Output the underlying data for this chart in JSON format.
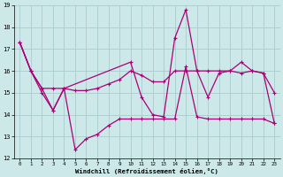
{
  "xlabel": "Windchill (Refroidissement éolien,°C)",
  "background_color": "#cce8e8",
  "grid_color": "#aacccc",
  "line_color": "#aa0077",
  "xlim": [
    -0.5,
    23.5
  ],
  "ylim": [
    12,
    19
  ],
  "yticks": [
    12,
    13,
    14,
    15,
    16,
    17,
    18,
    19
  ],
  "xticks": [
    0,
    1,
    2,
    3,
    4,
    5,
    6,
    7,
    8,
    9,
    10,
    11,
    12,
    13,
    14,
    15,
    16,
    17,
    18,
    19,
    20,
    21,
    22,
    23
  ],
  "series1_x": [
    0,
    1,
    2,
    3,
    4,
    5,
    6,
    7,
    8,
    9,
    10,
    11,
    12,
    13,
    14,
    15,
    16,
    17,
    18,
    19,
    20,
    21,
    22,
    23
  ],
  "series1_y": [
    17.3,
    16.0,
    15.0,
    14.2,
    15.2,
    12.4,
    12.9,
    13.1,
    13.5,
    13.8,
    13.8,
    13.8,
    13.8,
    13.8,
    13.8,
    16.2,
    13.9,
    13.8,
    13.8,
    13.8,
    13.8,
    13.8,
    13.8,
    13.6
  ],
  "series2_x": [
    0,
    1,
    2,
    3,
    4,
    5,
    6,
    7,
    8,
    9,
    10,
    11,
    12,
    13,
    14,
    15,
    16,
    17,
    18,
    19,
    20,
    21,
    22,
    23
  ],
  "series2_y": [
    17.3,
    16.0,
    15.2,
    15.2,
    15.2,
    15.1,
    15.1,
    15.2,
    15.4,
    15.6,
    16.0,
    15.8,
    15.5,
    15.5,
    16.0,
    16.0,
    16.0,
    16.0,
    16.0,
    16.0,
    16.4,
    16.0,
    15.9,
    15.0
  ],
  "series3_x": [
    0,
    1,
    2,
    3,
    4,
    10,
    11,
    12,
    13,
    14,
    15,
    16,
    17,
    18,
    19,
    20,
    21,
    22,
    23
  ],
  "series3_y": [
    17.3,
    16.0,
    15.2,
    14.2,
    15.2,
    16.4,
    14.8,
    14.0,
    13.9,
    17.5,
    18.8,
    16.0,
    14.8,
    15.9,
    16.0,
    15.9,
    16.0,
    15.9,
    13.6
  ]
}
